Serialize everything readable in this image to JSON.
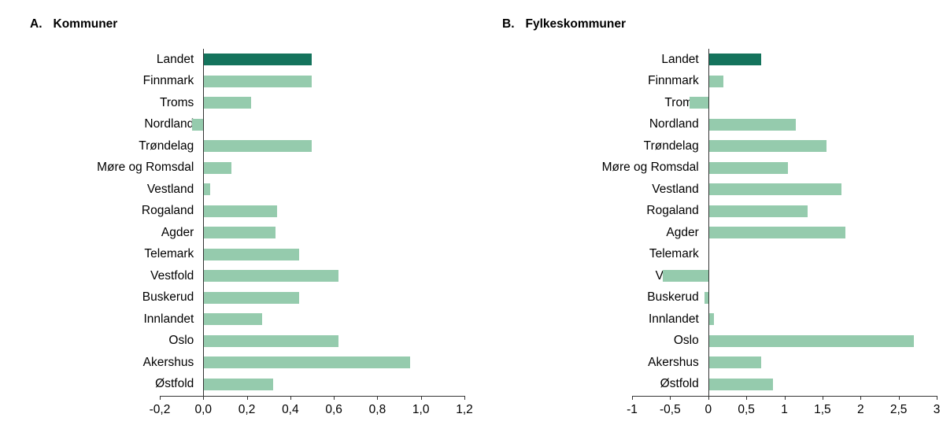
{
  "figure": {
    "background": "#ffffff",
    "axis_color": "#333333",
    "text_color": "#000000"
  },
  "chart_data": [
    {
      "type": "bar",
      "orientation": "horizontal",
      "panel_label": "A.",
      "title": "Kommuner",
      "bar_color": "#95cbad",
      "highlight_color": "#14735c",
      "highlight_index": 0,
      "grid": false,
      "legend": "none",
      "xlim": [
        -0.2,
        1.2
      ],
      "xticks": [
        {
          "value": -0.2,
          "label": "-0,2"
        },
        {
          "value": 0.0,
          "label": "0,0"
        },
        {
          "value": 0.2,
          "label": "0,2"
        },
        {
          "value": 0.4,
          "label": "0,4"
        },
        {
          "value": 0.6,
          "label": "0,6"
        },
        {
          "value": 0.8,
          "label": "0,8"
        },
        {
          "value": 1.0,
          "label": "1,0"
        },
        {
          "value": 1.2,
          "label": "1,2"
        }
      ],
      "categories": [
        "Landet",
        "Finnmark",
        "Troms",
        "Nordland",
        "Trøndelag",
        "Møre og Romsdal",
        "Vestland",
        "Rogaland",
        "Agder",
        "Telemark",
        "Vestfold",
        "Buskerud",
        "Innlandet",
        "Oslo",
        "Akershus",
        "Østfold"
      ],
      "values": [
        0.5,
        0.5,
        0.22,
        -0.05,
        0.5,
        0.13,
        0.03,
        0.34,
        0.33,
        0.44,
        0.62,
        0.44,
        0.27,
        0.62,
        0.95,
        0.32
      ]
    },
    {
      "type": "bar",
      "orientation": "horizontal",
      "panel_label": "B.",
      "title": "Fylkeskommuner",
      "bar_color": "#95cbad",
      "highlight_color": "#14735c",
      "highlight_index": 0,
      "grid": false,
      "legend": "none",
      "xlim": [
        -1,
        3
      ],
      "xticks": [
        {
          "value": -1,
          "label": "-1"
        },
        {
          "value": -0.5,
          "label": "-0,5"
        },
        {
          "value": 0,
          "label": "0"
        },
        {
          "value": 0.5,
          "label": "0,5"
        },
        {
          "value": 1,
          "label": "1"
        },
        {
          "value": 1.5,
          "label": "1,5"
        },
        {
          "value": 2,
          "label": "2"
        },
        {
          "value": 2.5,
          "label": "2,5"
        },
        {
          "value": 3,
          "label": "3"
        }
      ],
      "categories": [
        "Landet",
        "Finnmark",
        "Troms",
        "Nordland",
        "Trøndelag",
        "Møre og Romsdal",
        "Vestland",
        "Rogaland",
        "Agder",
        "Telemark",
        "Vestfold",
        "Buskerud",
        "Innlandet",
        "Oslo",
        "Akershus",
        "Østfold"
      ],
      "values": [
        0.7,
        0.2,
        -0.25,
        1.15,
        1.55,
        1.05,
        1.75,
        1.3,
        1.8,
        0,
        -0.6,
        -0.05,
        0.07,
        2.7,
        0.7,
        0.85
      ]
    }
  ]
}
